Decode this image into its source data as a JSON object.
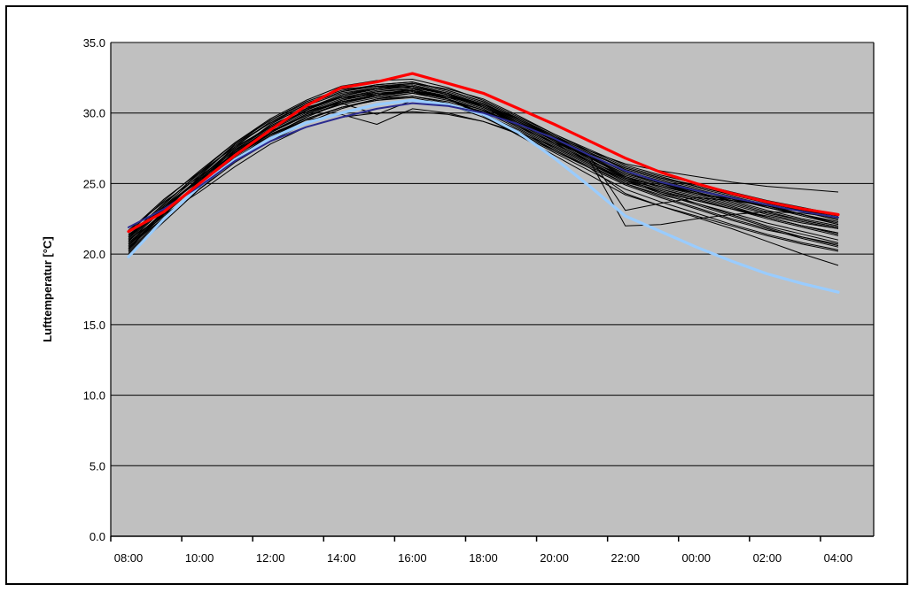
{
  "chart_data": {
    "type": "line",
    "ylabel": "Lufttemperatur [°C]",
    "xlabel": "",
    "ylim": [
      0,
      35
    ],
    "yticks": [
      "0.0",
      "5.0",
      "10.0",
      "15.0",
      "20.0",
      "25.0",
      "30.0",
      "35.0"
    ],
    "x": [
      "08:00",
      "09:00",
      "10:00",
      "11:00",
      "12:00",
      "13:00",
      "14:00",
      "15:00",
      "16:00",
      "17:00",
      "18:00",
      "19:00",
      "20:00",
      "21:00",
      "22:00",
      "23:00",
      "00:00",
      "01:00",
      "02:00",
      "03:00",
      "04:00"
    ],
    "xtick_labels": [
      "08:00",
      "10:00",
      "12:00",
      "14:00",
      "16:00",
      "18:00",
      "20:00",
      "22:00",
      "00:00",
      "02:00",
      "04:00"
    ],
    "grid": true,
    "colors": {
      "plot_background": "#c0c0c0",
      "highlight_red": "#ff0000",
      "highlight_lightblue": "#99ccff",
      "highlight_navy": "#2b2b8f",
      "ensemble": "#000000"
    },
    "highlight_series": [
      {
        "color": "#ff0000",
        "values": [
          21.6,
          23.0,
          25.0,
          27.0,
          28.8,
          30.5,
          31.8,
          32.2,
          32.8,
          32.1,
          31.4,
          30.3,
          29.2,
          28.0,
          26.8,
          25.8,
          25.0,
          24.3,
          23.7,
          23.2,
          22.8
        ]
      },
      {
        "color": "#99ccff",
        "values": [
          19.8,
          22.5,
          24.8,
          26.7,
          28.2,
          29.3,
          30.0,
          30.6,
          30.9,
          30.6,
          29.9,
          28.6,
          26.8,
          24.8,
          22.7,
          21.6,
          20.5,
          19.5,
          18.6,
          17.9,
          17.3
        ]
      },
      {
        "color": "#2b2b8f",
        "values": [
          21.9,
          23.2,
          24.8,
          26.6,
          28.0,
          29.0,
          29.7,
          30.3,
          30.7,
          30.5,
          30.0,
          29.2,
          28.2,
          27.0,
          25.9,
          25.1,
          24.5,
          24.0,
          23.5,
          23.0,
          22.6
        ]
      }
    ],
    "ensemble_series": [
      {
        "values": [
          20.6,
          22.9,
          25.1,
          27.2,
          28.9,
          30.1,
          31.0,
          31.4,
          31.6,
          31.1,
          30.3,
          29.0,
          27.7,
          26.5,
          25.3,
          24.6,
          24.0,
          23.3,
          22.6,
          22.0,
          21.4
        ]
      },
      {
        "values": [
          21.0,
          23.3,
          25.4,
          27.5,
          29.1,
          30.3,
          31.2,
          31.7,
          31.9,
          31.3,
          30.5,
          29.3,
          28.0,
          26.8,
          25.7,
          25.0,
          24.4,
          23.7,
          23.0,
          22.4,
          21.9
        ]
      },
      {
        "values": [
          20.2,
          22.5,
          24.8,
          26.9,
          28.6,
          29.8,
          30.7,
          31.2,
          31.5,
          31.0,
          30.0,
          28.7,
          27.4,
          26.2,
          25.0,
          24.2,
          23.6,
          22.9,
          22.2,
          21.6,
          21.0
        ]
      },
      {
        "values": [
          21.3,
          23.6,
          25.7,
          27.7,
          29.3,
          30.6,
          31.5,
          31.9,
          32.1,
          31.5,
          30.7,
          29.5,
          28.2,
          27.0,
          25.9,
          25.2,
          24.6,
          24.0,
          23.3,
          22.8,
          22.2
        ]
      },
      {
        "values": [
          20.8,
          23.0,
          25.0,
          27.0,
          28.5,
          29.6,
          30.4,
          30.9,
          31.2,
          30.8,
          30.1,
          28.9,
          27.6,
          26.4,
          25.2,
          24.3,
          23.5,
          22.7,
          21.9,
          21.2,
          20.6
        ]
      },
      {
        "values": [
          20.4,
          22.8,
          25.2,
          27.4,
          29.0,
          30.3,
          31.3,
          31.8,
          32.0,
          31.4,
          30.4,
          29.1,
          27.8,
          26.6,
          25.5,
          24.8,
          24.2,
          23.5,
          22.8,
          22.3,
          21.8
        ]
      },
      {
        "values": [
          21.5,
          23.8,
          25.9,
          27.9,
          29.5,
          30.7,
          31.6,
          32.0,
          32.2,
          31.6,
          30.8,
          29.6,
          28.4,
          27.2,
          26.0,
          25.3,
          24.7,
          24.1,
          23.5,
          23.0,
          22.5
        ]
      },
      {
        "values": [
          20.0,
          22.3,
          24.6,
          26.7,
          28.3,
          29.5,
          30.4,
          30.9,
          31.1,
          30.6,
          29.7,
          28.5,
          27.2,
          25.9,
          24.6,
          23.7,
          22.9,
          22.1,
          21.4,
          20.8,
          20.3
        ]
      },
      {
        "values": [
          21.1,
          23.4,
          25.6,
          27.8,
          29.3,
          30.4,
          31.1,
          31.3,
          31.5,
          31.0,
          30.2,
          29.0,
          27.9,
          26.9,
          25.9,
          25.1,
          24.4,
          23.8,
          23.1,
          22.5,
          22.0
        ]
      },
      {
        "values": [
          20.7,
          22.7,
          24.6,
          26.5,
          28.0,
          29.3,
          30.3,
          31.0,
          31.4,
          31.1,
          30.6,
          29.6,
          28.3,
          26.9,
          25.4,
          24.6,
          23.9,
          23.2,
          22.5,
          21.9,
          21.3
        ]
      },
      {
        "values": [
          20.3,
          23.0,
          25.5,
          27.8,
          29.5,
          30.8,
          31.7,
          31.9,
          31.8,
          31.0,
          29.9,
          28.6,
          27.3,
          26.1,
          24.9,
          24.0,
          23.2,
          22.4,
          21.7,
          21.2,
          20.7
        ]
      },
      {
        "values": [
          21.7,
          23.7,
          25.5,
          27.3,
          28.9,
          30.2,
          31.2,
          31.8,
          32.1,
          31.7,
          31.0,
          29.8,
          28.5,
          27.3,
          26.2,
          25.5,
          24.8,
          24.2,
          23.6,
          23.1,
          22.7
        ]
      },
      {
        "values": [
          20.9,
          23.2,
          25.3,
          27.2,
          28.7,
          29.8,
          30.6,
          31.1,
          31.4,
          30.9,
          30.2,
          29.2,
          28.1,
          26.8,
          25.5,
          24.7,
          24.1,
          23.4,
          22.6,
          22.0,
          21.5
        ]
      },
      {
        "values": [
          20.5,
          22.6,
          24.7,
          26.8,
          28.4,
          29.7,
          30.7,
          31.3,
          31.7,
          31.2,
          30.4,
          29.3,
          28.2,
          27.0,
          25.8,
          25.0,
          24.3,
          23.6,
          22.9,
          22.4,
          21.9
        ]
      },
      {
        "values": [
          21.2,
          23.5,
          25.8,
          27.9,
          29.6,
          30.9,
          31.9,
          32.3,
          32.4,
          31.8,
          30.9,
          29.7,
          28.5,
          27.4,
          26.3,
          25.6,
          25.0,
          24.4,
          23.8,
          23.3,
          22.8
        ]
      },
      {
        "values": [
          20.1,
          22.4,
          24.9,
          27.1,
          28.8,
          30.0,
          30.9,
          31.4,
          31.6,
          31.0,
          29.8,
          28.4,
          27.0,
          25.6,
          24.2,
          23.4,
          22.7,
          22.0,
          21.3,
          20.7,
          20.2
        ]
      },
      {
        "values": [
          21.4,
          23.1,
          24.9,
          26.9,
          28.6,
          29.9,
          30.8,
          31.2,
          31.5,
          31.2,
          30.5,
          29.4,
          28.1,
          26.9,
          25.7,
          25.0,
          24.5,
          23.9,
          23.3,
          22.7,
          22.1
        ]
      },
      {
        "values": [
          20.6,
          22.9,
          25.0,
          27.3,
          29.2,
          30.5,
          31.4,
          31.8,
          31.9,
          31.3,
          30.6,
          29.5,
          28.3,
          27.1,
          26.1,
          25.4,
          24.9,
          24.3,
          23.7,
          23.0,
          22.4
        ]
      },
      {
        "values": [
          21.0,
          22.8,
          24.4,
          26.2,
          27.8,
          29.0,
          29.7,
          30.0,
          30.1,
          29.9,
          29.4,
          28.6,
          27.6,
          26.4,
          25.1,
          24.4,
          23.8,
          23.2,
          22.7,
          22.2,
          21.8
        ]
      },
      {
        "values": [
          20.3,
          22.6,
          24.7,
          26.9,
          28.8,
          30.2,
          31.1,
          31.6,
          31.9,
          31.4,
          30.6,
          29.4,
          28.1,
          26.7,
          25.3,
          24.4,
          23.6,
          22.8,
          22.0,
          21.4,
          20.8
        ]
      },
      {
        "values": [
          21.6,
          23.9,
          25.8,
          27.6,
          29.0,
          30.1,
          30.8,
          31.3,
          31.5,
          31.0,
          30.2,
          29.1,
          27.8,
          26.6,
          25.4,
          24.8,
          24.3,
          23.8,
          23.4,
          23.0,
          22.6
        ]
      },
      {
        "values": [
          20.8,
          22.9,
          25.1,
          27.0,
          28.4,
          29.5,
          30.4,
          31.0,
          31.2,
          30.7,
          29.9,
          28.8,
          27.5,
          26.3,
          25.0,
          24.1,
          23.3,
          22.5,
          21.8,
          21.1,
          20.5
        ]
      },
      {
        "values": [
          20.4,
          23.1,
          25.4,
          27.6,
          29.4,
          30.6,
          31.5,
          32.0,
          32.2,
          31.6,
          30.8,
          29.6,
          28.4,
          27.2,
          26.1,
          25.4,
          24.8,
          24.2,
          23.6,
          23.1,
          22.6
        ]
      },
      {
        "values": [
          21.3,
          23.3,
          25.2,
          27.0,
          28.6,
          29.9,
          30.9,
          31.5,
          31.8,
          31.3,
          30.4,
          29.2,
          27.9,
          26.5,
          25.2,
          24.5,
          23.8,
          23.2,
          22.6,
          22.0,
          21.5
        ]
      },
      {
        "values": [
          20.7,
          23.0,
          25.1,
          27.2,
          28.9,
          30.2,
          31.2,
          31.7,
          31.9,
          31.4,
          30.6,
          29.5,
          28.3,
          27.3,
          26.4,
          25.9,
          25.5,
          25.1,
          24.8,
          24.6,
          24.4
        ]
      },
      {
        "values": [
          21.1,
          23.4,
          25.3,
          27.1,
          28.5,
          29.5,
          29.9,
          29.2,
          30.3,
          30.0,
          29.4,
          28.5,
          27.4,
          26.1,
          24.3,
          23.4,
          22.6,
          21.8,
          20.9,
          20.0,
          19.2
        ]
      },
      {
        "values": [
          20.9,
          23.2,
          25.4,
          27.5,
          29.1,
          30.3,
          31.1,
          31.5,
          31.7,
          31.2,
          30.4,
          29.3,
          28.0,
          26.6,
          22.0,
          22.1,
          22.5,
          22.8,
          23.0,
          22.9,
          22.6
        ]
      },
      {
        "values": [
          20.5,
          22.8,
          25.0,
          27.1,
          28.7,
          29.9,
          30.8,
          31.3,
          31.6,
          31.2,
          30.5,
          29.4,
          28.2,
          26.9,
          23.1,
          23.6,
          24.0,
          23.8,
          23.5,
          22.8,
          22.1
        ]
      },
      {
        "values": [
          21.2,
          23.2,
          25.3,
          27.4,
          29.0,
          30.1,
          30.7,
          29.9,
          30.9,
          30.6,
          30.1,
          29.2,
          28.1,
          26.8,
          25.6,
          24.9,
          24.3,
          23.9,
          23.4,
          22.8,
          22.3
        ]
      }
    ]
  }
}
